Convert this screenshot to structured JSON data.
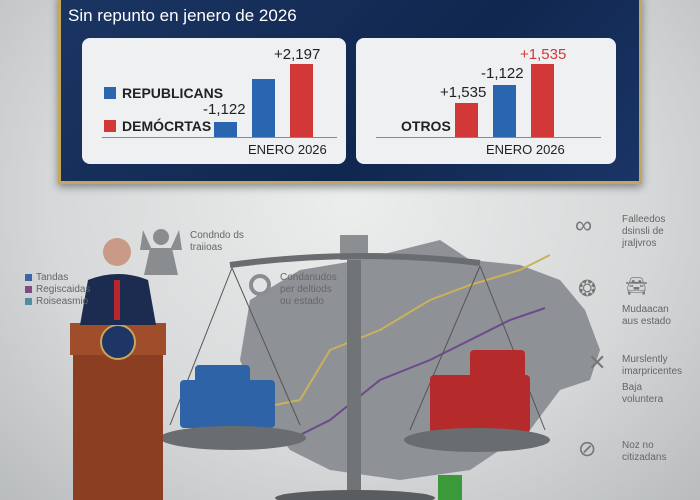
{
  "banner": {
    "subtitle": "Sin repunto en jenero de 2026"
  },
  "colors": {
    "republicans": "#2a65b0",
    "democrats": "#d23838",
    "banner": "#13295a",
    "border": "#c6a65a"
  },
  "panel_left": {
    "legend": [
      {
        "label": "REPUBLICANS",
        "color": "#2a65b0"
      },
      {
        "label": "DEMÓCRTAS",
        "color": "#d23838"
      }
    ],
    "bars": [
      {
        "label": "-1,122",
        "color": "#2a65b0"
      },
      {
        "label": "",
        "color": "#2a65b0"
      },
      {
        "label": "+2,197",
        "color": "#d23838"
      }
    ],
    "xlabel": "ENERO 2026"
  },
  "panel_right": {
    "category": "OTROS",
    "bars": [
      {
        "label": "+1,535",
        "color": "#d23838"
      },
      {
        "label": "-1,122",
        "color": "#2a65b0"
      },
      {
        "label": "+1,535",
        "color": "#d23838"
      }
    ],
    "xlabel": "ENERO 2026"
  },
  "left_legend": [
    "Tandas",
    "Regiscaidas",
    "Roiseasmio"
  ],
  "annotations": {
    "angel": "Condndo ds traiioas",
    "scale": "Condanudos per deltiods ou estado"
  },
  "right_items": [
    {
      "icon": "infinity-icon",
      "text": "Falleedos dsinsli de jraljvros"
    },
    {
      "icon": "car-icon",
      "text": "Mudaacan aus estado"
    },
    {
      "icon": "hammer-icon",
      "text": "Murslently imarpricentes"
    },
    {
      "icon": "",
      "text": "Baja voluntera"
    },
    {
      "icon": "no-globe-icon",
      "text": "Noz no citizadans"
    }
  ]
}
